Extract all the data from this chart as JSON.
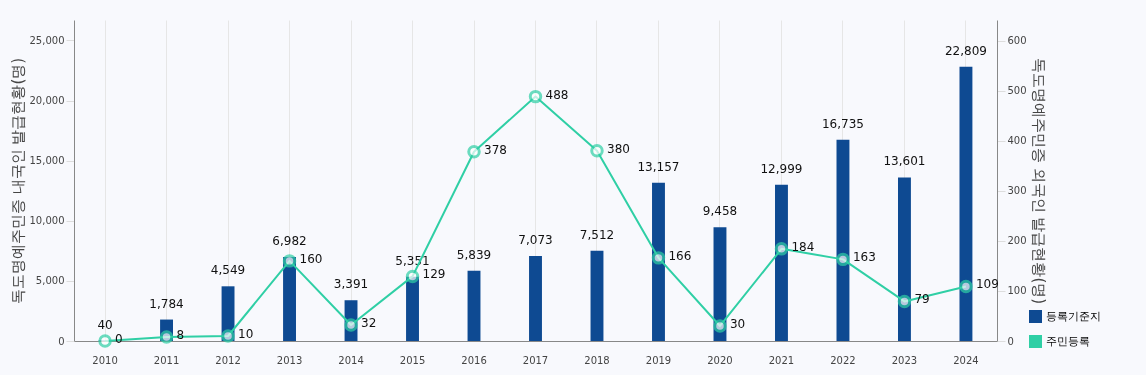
{
  "chart_data": {
    "type": "bar",
    "categories": [
      "2010",
      "2011",
      "2012",
      "2013",
      "2014",
      "2015",
      "2016",
      "2017",
      "2018",
      "2019",
      "2020",
      "2021",
      "2022",
      "2023",
      "2024"
    ],
    "ylabel": "독도명예주민증 내국인 발급현황(명)",
    "y2label": "독도명예주민증 외국인 발급현황(명)",
    "ylim": [
      0,
      26700
    ],
    "yticks": [
      0,
      {
        "value": 5000,
        "label": "5,000"
      },
      {
        "value": 10000,
        "label": "10,000"
      },
      {
        "value": 15000,
        "label": "15,000"
      },
      {
        "value": 20000,
        "label": "20,000"
      },
      {
        "value": 25000,
        "label": "25,000"
      }
    ],
    "y2lim": [
      0,
      641
    ],
    "y2ticks": [
      0,
      100,
      200,
      300,
      400,
      500,
      600
    ],
    "grid": "x",
    "legend": "bottom right",
    "data_labels": true,
    "marker": "circle",
    "series": [
      {
        "name": "등록기준지",
        "color": "#0e4a92",
        "values": [
          40,
          1784,
          4549,
          6982,
          3391,
          5351,
          5839,
          7073,
          7512,
          13157,
          9458,
          12999,
          16735,
          13601,
          22809
        ],
        "value_labels": [
          "40",
          "1,784",
          "4,549",
          "6,982",
          "3,391",
          "5,351",
          "5,839",
          "7,073",
          "7,512",
          "13,157",
          "9,458",
          "12,999",
          "16,735",
          "13,601",
          "22,809"
        ]
      },
      {
        "name": "주민등록",
        "type": "line",
        "axis": "y2",
        "color": "#2fcfa5",
        "values": [
          0,
          8,
          10,
          160,
          32,
          129,
          378,
          488,
          380,
          166,
          30,
          184,
          163,
          79,
          109
        ]
      }
    ]
  }
}
